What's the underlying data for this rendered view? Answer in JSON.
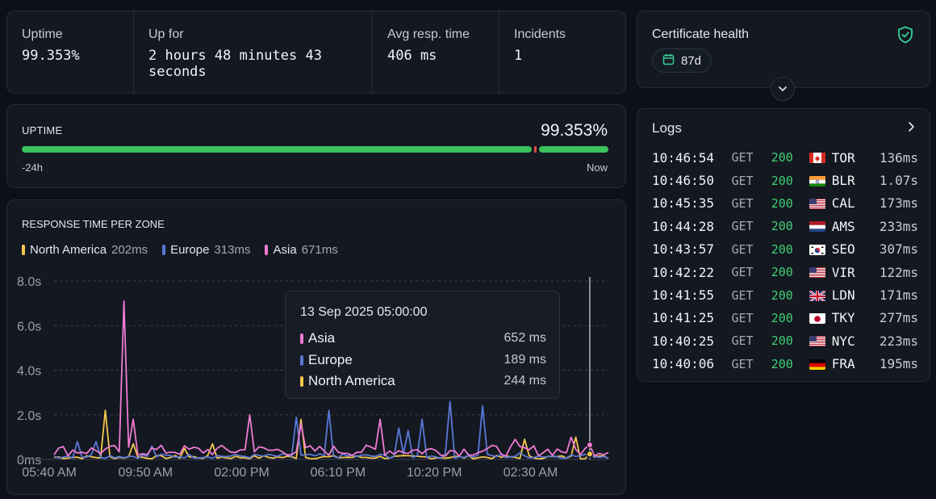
{
  "stats": {
    "uptime": {
      "label": "Uptime",
      "value": "99.353%"
    },
    "up_for": {
      "label": "Up for",
      "value": "2 hours 48 minutes 43 seconds"
    },
    "avg": {
      "label": "Avg resp. time",
      "value": "406 ms"
    },
    "incidents": {
      "label": "Incidents",
      "value": "1"
    }
  },
  "certificate": {
    "title": "Certificate health",
    "days": "87d",
    "icon": "shield-check-icon"
  },
  "uptime_bar": {
    "title": "UPTIME",
    "percent": "99.353%",
    "from": "-24h",
    "to": "Now",
    "uptime_fraction": 0.99353
  },
  "logs": {
    "title": "Logs",
    "rows": [
      {
        "time": "10:46:54",
        "method": "GET",
        "status": "200",
        "flag": "ca",
        "code": "TOR",
        "duration": "136ms"
      },
      {
        "time": "10:46:50",
        "method": "GET",
        "status": "200",
        "flag": "in",
        "code": "BLR",
        "duration": "1.07s"
      },
      {
        "time": "10:45:35",
        "method": "GET",
        "status": "200",
        "flag": "us",
        "code": "CAL",
        "duration": "173ms"
      },
      {
        "time": "10:44:28",
        "method": "GET",
        "status": "200",
        "flag": "nl",
        "code": "AMS",
        "duration": "233ms"
      },
      {
        "time": "10:43:57",
        "method": "GET",
        "status": "200",
        "flag": "kr",
        "code": "SEO",
        "duration": "307ms"
      },
      {
        "time": "10:42:22",
        "method": "GET",
        "status": "200",
        "flag": "us",
        "code": "VIR",
        "duration": "122ms"
      },
      {
        "time": "10:41:55",
        "method": "GET",
        "status": "200",
        "flag": "gb",
        "code": "LDN",
        "duration": "171ms"
      },
      {
        "time": "10:41:25",
        "method": "GET",
        "status": "200",
        "flag": "jp",
        "code": "TKY",
        "duration": "277ms"
      },
      {
        "time": "10:40:25",
        "method": "GET",
        "status": "200",
        "flag": "us",
        "code": "NYC",
        "duration": "223ms"
      },
      {
        "time": "10:40:06",
        "method": "GET",
        "status": "200",
        "flag": "de",
        "code": "FRA",
        "duration": "195ms"
      }
    ]
  },
  "response": {
    "title": "RESPONSE TIME PER ZONE",
    "legend": [
      {
        "name": "North America",
        "value": "202ms",
        "color": "#f5c84c"
      },
      {
        "name": "Europe",
        "value": "313ms",
        "color": "#5b78d6"
      },
      {
        "name": "Asia",
        "value": "671ms",
        "color": "#f07bd3"
      }
    ],
    "tooltip": {
      "date": "13 Sep 2025 05:00:00",
      "rows": [
        {
          "name": "Asia",
          "value": "652 ms",
          "color": "#f07bd3"
        },
        {
          "name": "Europe",
          "value": "189 ms",
          "color": "#5b78d6"
        },
        {
          "name": "North America",
          "value": "244 ms",
          "color": "#f5c84c"
        }
      ]
    }
  },
  "chart_data": {
    "type": "line",
    "title": "RESPONSE TIME PER ZONE",
    "y_ticks": [
      "0ms",
      "2.0s",
      "4.0s",
      "6.0s",
      "8.0s"
    ],
    "ylim": [
      0,
      8.0
    ],
    "y_unit": "s",
    "x_ticks": [
      "05:40 AM",
      "09:50 AM",
      "02:00 PM",
      "06:10 PM",
      "10:20 PM",
      "02:30 AM"
    ],
    "grid": true,
    "points_per_series": 120,
    "series": [
      {
        "name": "Asia",
        "color": "#f07bd3",
        "base": 0.4,
        "noise": 0.25,
        "spikes": [
          [
            15,
            7.1
          ],
          [
            17,
            1.8
          ],
          [
            42,
            2.0
          ],
          [
            53,
            1.6
          ],
          [
            70,
            1.8
          ],
          [
            99,
            0.9
          ],
          [
            111,
            1.0
          ]
        ]
      },
      {
        "name": "Europe",
        "color": "#5b78d6",
        "base": 0.15,
        "noise": 0.1,
        "spikes": [
          [
            5,
            0.8
          ],
          [
            9,
            0.8
          ],
          [
            21,
            0.6
          ],
          [
            52,
            1.9
          ],
          [
            59,
            2.2
          ],
          [
            79,
            1.8
          ],
          [
            74,
            1.4
          ],
          [
            76,
            1.3
          ],
          [
            85,
            2.6
          ],
          [
            92,
            2.4
          ],
          [
            100,
            0.3
          ]
        ]
      },
      {
        "name": "North America",
        "color": "#f5c84c",
        "base": 0.1,
        "noise": 0.08,
        "spikes": [
          [
            11,
            2.2
          ],
          [
            17,
            0.7
          ],
          [
            28,
            0.5
          ],
          [
            34,
            0.7
          ],
          [
            53,
            1.8
          ],
          [
            101,
            0.9
          ],
          [
            112,
            1.0
          ]
        ]
      }
    ],
    "highlight_index": 115,
    "highlight_values": [
      {
        "name": "Asia",
        "value": 0.652
      },
      {
        "name": "Europe",
        "value": 0.189
      },
      {
        "name": "North America",
        "value": 0.244
      }
    ]
  }
}
